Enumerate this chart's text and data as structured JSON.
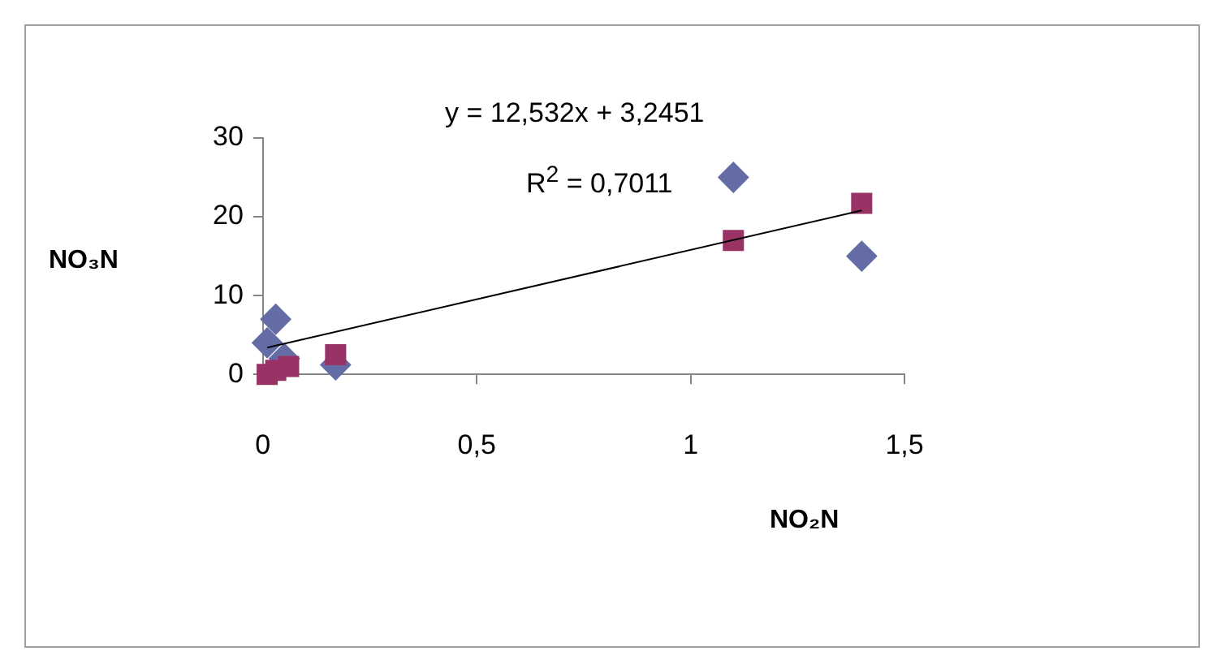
{
  "chart_data": {
    "type": "scatter",
    "xlabel": "NO₂N",
    "ylabel": "NO₃N",
    "xlim": [
      0,
      1.5
    ],
    "xticks": [
      0,
      {
        "value": 0.5,
        "label": "0,5"
      },
      1,
      {
        "value": 1.5,
        "label": "1,5"
      }
    ],
    "ylim": [
      0,
      30
    ],
    "yticks": [
      0,
      10,
      20,
      30
    ],
    "grid": false,
    "legend": false,
    "annotations": [
      "y = 12,532x + 3,2451",
      "R$^{2}$ = 0,7011"
    ],
    "series": [
      {
        "marker": "diamond",
        "color": "#646ca6",
        "x": [
          0.01,
          0.03,
          0.05,
          0.17,
          1.1,
          1.4
        ],
        "values": [
          4,
          7,
          2,
          1.2,
          25,
          15
        ]
      },
      {
        "marker": "square",
        "color": "#993366",
        "x": [
          0.01,
          0.03,
          0.06,
          0.17,
          1.1,
          1.4
        ],
        "values": [
          0,
          0.5,
          1,
          2.5,
          17,
          21.7
        ]
      },
      {
        "type": "line",
        "marker": "none",
        "color": "#000000",
        "x": [
          0.01,
          1.4
        ],
        "values": [
          3.4,
          20.8
        ]
      }
    ]
  }
}
